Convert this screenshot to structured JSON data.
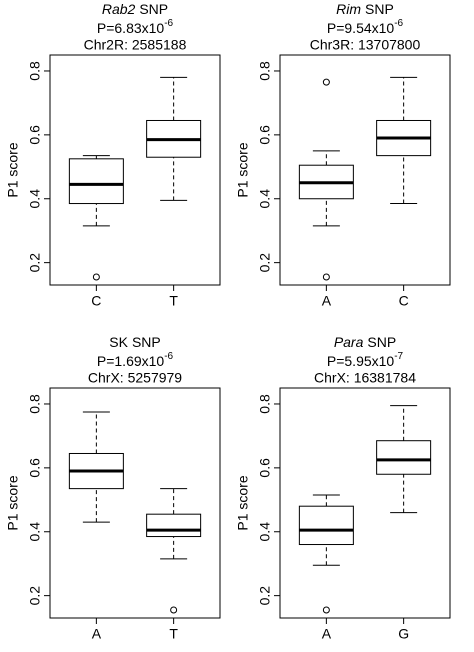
{
  "chart_data": [
    {
      "type": "box",
      "title": {
        "gene": "Rab2",
        "gene_italic": true,
        "suffix": "SNP"
      },
      "p_value": {
        "text": "P=6.83x10",
        "exponent": "-6"
      },
      "position": "Chr2R: 2585188",
      "y_label": "P1 score",
      "categories": [
        "C",
        "T"
      ],
      "boxes": [
        {
          "whisker_low": 0.315,
          "q1": 0.385,
          "median": 0.445,
          "q3": 0.525,
          "whisker_high": 0.535,
          "outliers": [
            0.155
          ]
        },
        {
          "whisker_low": 0.395,
          "q1": 0.53,
          "median": 0.585,
          "q3": 0.645,
          "whisker_high": 0.78,
          "outliers": []
        }
      ],
      "ylim": [
        0.13,
        0.85
      ],
      "yticks": [
        0.2,
        0.4,
        0.6,
        0.8
      ]
    },
    {
      "type": "box",
      "title": {
        "gene": "Rim",
        "gene_italic": true,
        "suffix": "SNP"
      },
      "p_value": {
        "text": "P=9.54x10",
        "exponent": "-6"
      },
      "position": "Chr3R: 13707800",
      "y_label": "P1 score",
      "categories": [
        "A",
        "C"
      ],
      "boxes": [
        {
          "whisker_low": 0.315,
          "q1": 0.4,
          "median": 0.45,
          "q3": 0.505,
          "whisker_high": 0.55,
          "outliers": [
            0.765,
            0.155
          ]
        },
        {
          "whisker_low": 0.385,
          "q1": 0.535,
          "median": 0.59,
          "q3": 0.645,
          "whisker_high": 0.78,
          "outliers": []
        }
      ],
      "ylim": [
        0.13,
        0.85
      ],
      "yticks": [
        0.2,
        0.4,
        0.6,
        0.8
      ]
    },
    {
      "type": "box",
      "title": {
        "gene": "SK",
        "gene_italic": false,
        "suffix": "SNP"
      },
      "p_value": {
        "text": "P=1.69x10",
        "exponent": "-6"
      },
      "position": "ChrX: 5257979",
      "y_label": "P1 score",
      "categories": [
        "A",
        "T"
      ],
      "boxes": [
        {
          "whisker_low": 0.43,
          "q1": 0.535,
          "median": 0.59,
          "q3": 0.645,
          "whisker_high": 0.775,
          "outliers": []
        },
        {
          "whisker_low": 0.315,
          "q1": 0.385,
          "median": 0.405,
          "q3": 0.455,
          "whisker_high": 0.535,
          "outliers": [
            0.155
          ]
        }
      ],
      "ylim": [
        0.13,
        0.85
      ],
      "yticks": [
        0.2,
        0.4,
        0.6,
        0.8
      ]
    },
    {
      "type": "box",
      "title": {
        "gene": "Para",
        "gene_italic": true,
        "suffix": "SNP"
      },
      "p_value": {
        "text": "P=5.95x10",
        "exponent": "-7"
      },
      "position": "ChrX: 16381784",
      "y_label": "P1 score",
      "categories": [
        "A",
        "G"
      ],
      "boxes": [
        {
          "whisker_low": 0.295,
          "q1": 0.36,
          "median": 0.405,
          "q3": 0.48,
          "whisker_high": 0.515,
          "outliers": [
            0.155
          ]
        },
        {
          "whisker_low": 0.46,
          "q1": 0.58,
          "median": 0.625,
          "q3": 0.685,
          "whisker_high": 0.795,
          "outliers": []
        }
      ],
      "ylim": [
        0.13,
        0.85
      ],
      "yticks": [
        0.2,
        0.4,
        0.6,
        0.8
      ]
    }
  ]
}
